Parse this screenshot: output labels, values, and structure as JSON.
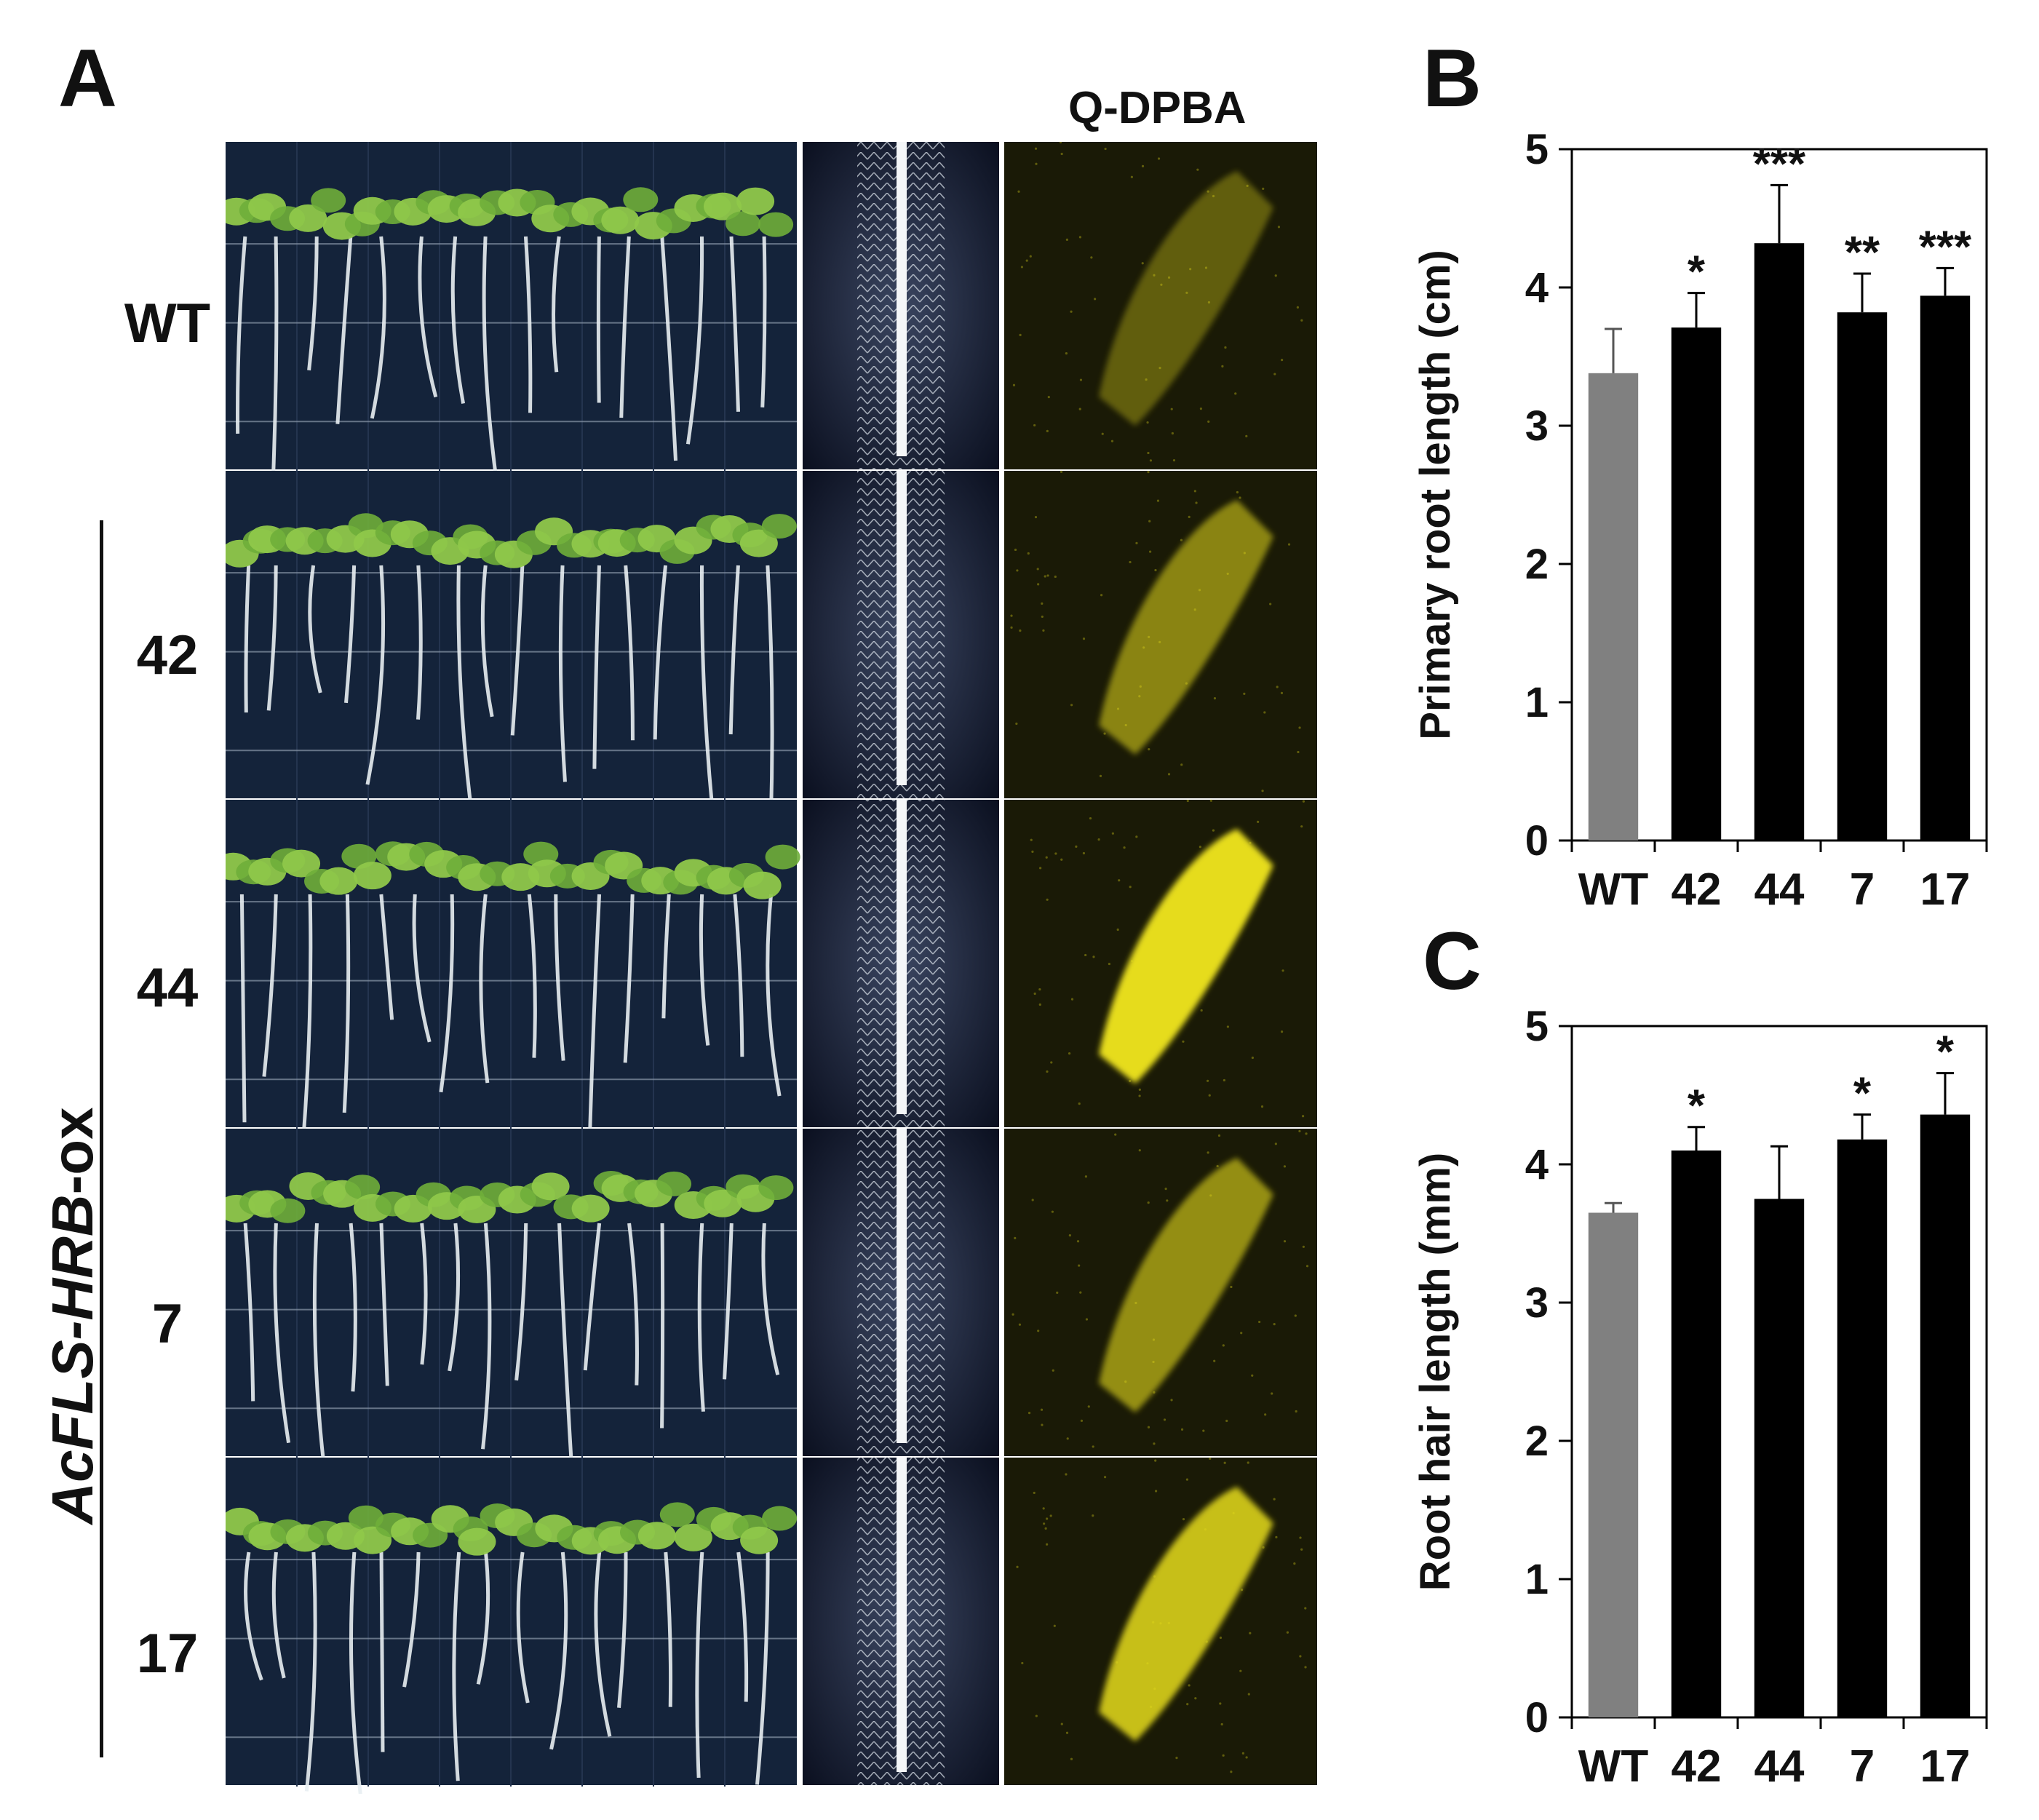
{
  "figure": {
    "panel_a": {
      "letter": "A",
      "qdpba_label": "Q-DPBA",
      "genotype_label": {
        "prefix": "AcFLS-HRB",
        "suffix": "-ox"
      },
      "rows": [
        "WT",
        "42",
        "44",
        "7",
        "17"
      ],
      "images": {
        "seedlings": "seedlings-on-plate-photo",
        "root_closeup": "root-hair-closeup-photo",
        "fluorescence": "dpba-fluorescence-photo"
      },
      "colors": {
        "plate_bg": "#14233a",
        "leaf": "#8fc84a",
        "root": "#e8eef2",
        "fluor_bg": "#1a1a06",
        "fluor": "#e6dc1e"
      },
      "fluor_intensity": [
        0.35,
        0.55,
        1.0,
        0.6,
        0.85
      ]
    },
    "panel_b": {
      "letter": "B"
    },
    "panel_c": {
      "letter": "C"
    }
  },
  "chart_data": [
    {
      "panel": "B",
      "type": "bar",
      "categories": [
        "WT",
        "42",
        "44",
        "7",
        "17"
      ],
      "values": [
        3.38,
        3.71,
        4.32,
        3.82,
        3.94
      ],
      "errors": [
        0.32,
        0.25,
        0.42,
        0.28,
        0.2
      ],
      "significance": [
        "",
        "*",
        "***",
        "**",
        "***"
      ],
      "ylabel": "Primary root length (cm)",
      "ylim": [
        0,
        5
      ],
      "yticks": [
        "0",
        "1",
        "2",
        "3",
        "4",
        "5"
      ],
      "bar_colors": [
        "#808080",
        "#000000",
        "#000000",
        "#000000",
        "#000000"
      ],
      "grid": false
    },
    {
      "panel": "C",
      "type": "bar",
      "categories": [
        "WT",
        "42",
        "44",
        "7",
        "17"
      ],
      "values": [
        3.65,
        4.1,
        3.75,
        4.18,
        4.36
      ],
      "errors": [
        0.07,
        0.17,
        0.38,
        0.18,
        0.3
      ],
      "significance": [
        "",
        "*",
        "",
        "*",
        "*"
      ],
      "ylabel": "Root hair length (mm)",
      "ylim": [
        0,
        5
      ],
      "yticks": [
        "0",
        "1",
        "2",
        "3",
        "4",
        "5"
      ],
      "bar_colors": [
        "#808080",
        "#000000",
        "#000000",
        "#000000",
        "#000000"
      ],
      "grid": false
    }
  ]
}
